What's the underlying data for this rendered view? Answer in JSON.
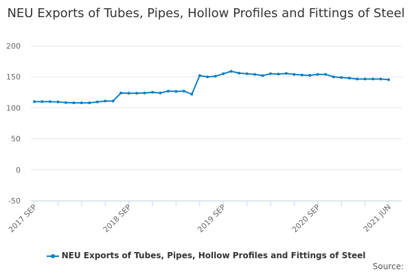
{
  "chart_data": {
    "type": "line",
    "title": "NEU Exports of Tubes, Pipes, Hollow Profiles and Fittings of Steel",
    "xlabel": "",
    "ylabel": "",
    "ylim": [
      -50,
      200
    ],
    "yticks": [
      -50,
      0,
      50,
      100,
      150,
      200
    ],
    "xtick_labels": [
      {
        "index": 0,
        "label": "2017 SEP"
      },
      {
        "index": 12,
        "label": "2018 SEP"
      },
      {
        "index": 24,
        "label": "2019 SEP"
      },
      {
        "index": 36,
        "label": "2020 SEP"
      },
      {
        "index": 45,
        "label": "2021 JUN"
      }
    ],
    "grid": true,
    "legend_position": "bottom",
    "series": [
      {
        "name": "NEU Exports of Tubes, Pipes, Hollow Profiles and Fittings of Steel",
        "color": "#0a7ec2",
        "values": [
          110,
          110,
          110,
          109.5,
          108.5,
          108,
          108,
          108,
          109.5,
          111,
          111,
          124,
          123.5,
          123.5,
          124,
          125,
          124,
          127,
          126.5,
          127,
          122,
          152,
          150,
          151,
          155,
          159,
          156,
          155,
          154,
          152,
          155,
          154.5,
          155.5,
          154,
          153,
          152.5,
          154,
          154,
          150,
          149,
          148,
          146.5,
          146.5,
          146.5,
          146.5,
          145.5
        ]
      }
    ],
    "source_label": "Source:"
  }
}
